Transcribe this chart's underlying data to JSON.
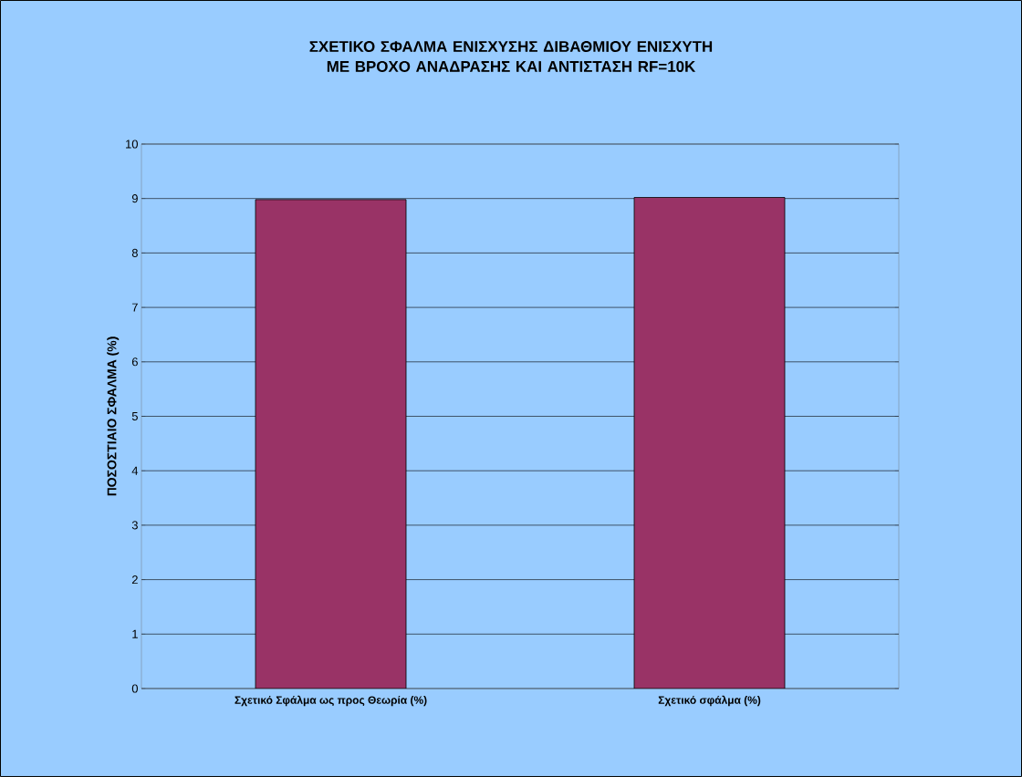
{
  "chart_data": {
    "type": "bar",
    "title": "ΣΧΕΤΙΚΟ ΣΦΑΛΜΑ ΕΝΙΣΧΥΣΗΣ ΔΙΒΑΘΜΙΟΥ ΕΝΙΣΧΥΤΗ ΜΕ ΒΡΟΧΟ ΑΝΑΔΡΑΣΗΣ ΚΑΙ ΑΝΤΙΣΤΑΣΗ RF=10K",
    "ylabel": "ΠΟΣΟΣΤΙΑΙΟ ΣΦΑΛΜΑ (%)",
    "categories": [
      "Σχετικό Σφάλμα ως προς Θεωρία (%)",
      "Σχετικό σφάλμα (%)"
    ],
    "values": [
      8.98,
      9.02
    ],
    "color": "#993366",
    "ylim": [
      0,
      10
    ],
    "yticks": [
      0,
      1,
      2,
      3,
      4,
      5,
      6,
      7,
      8,
      9,
      10
    ],
    "grid": "y"
  }
}
